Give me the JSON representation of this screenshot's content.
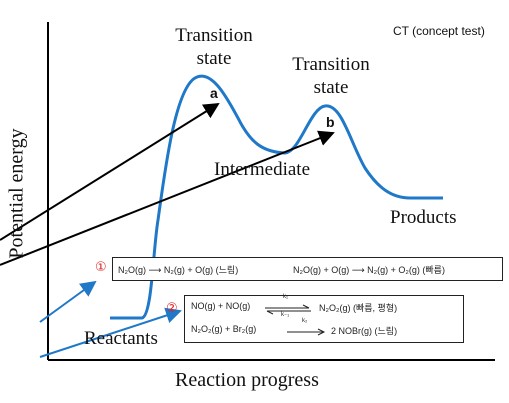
{
  "ct_label": "CT (concept test)",
  "transition_state_1": [
    "Transition",
    "state"
  ],
  "transition_state_2": [
    "Transition",
    "state"
  ],
  "label_a": "a",
  "label_b": "b",
  "intermediate": "Intermediate",
  "products": "Products",
  "reactants": "Reactants",
  "x_axis": "Reaction progress",
  "y_axis": "Potential energy",
  "mechanism_1": {
    "marker": "①",
    "step1": "N₂O(g) ⟶ N₂(g) + O(g) (느림)",
    "step2": "N₂O(g) + O(g) ⟶ N₂(g) + O₂(g) (빠름)"
  },
  "mechanism_2": {
    "marker": "②",
    "step1_left": "NO(g) + NO(g)",
    "step1_k_forward": "k₁",
    "step1_k_reverse": "k₋₁",
    "step1_right": "N₂O₂(g) (빠름, 평형)",
    "step2_left": "N₂O₂(g) + Br₂(g)",
    "step2_k": "k₂",
    "step2_right": "2 NOBr(g) (느림)"
  },
  "colors": {
    "curve": "#1f78c8",
    "arrow_blue": "#1f78c8",
    "arrow_black": "#000000",
    "marker": "#e02020"
  }
}
